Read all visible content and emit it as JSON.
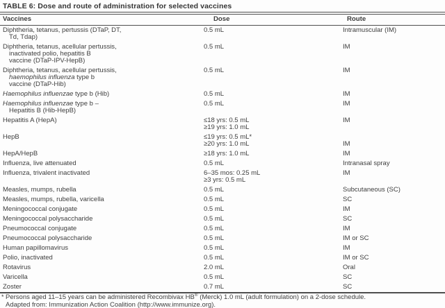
{
  "page": {
    "title": "TABLE 6: Dose and route of administration for selected vaccines"
  },
  "columns": {
    "vaccine": "Vaccines",
    "dose": "Dose",
    "route": "Route"
  },
  "rows": [
    {
      "vaccine": [
        [
          {
            "t": "Diphtheria, tetanus, pertussis (DTaP, DT,"
          }
        ],
        [
          {
            "t": "Td, Tdap)"
          }
        ]
      ],
      "dose": [
        "0.5 mL"
      ],
      "route": [
        "Intramuscular (IM)"
      ]
    },
    {
      "vaccine": [
        [
          {
            "t": "Diphtheria, tetanus, acellular pertussis,"
          }
        ],
        [
          {
            "t": "inactivated polio, hepatitis B"
          }
        ],
        [
          {
            "t": "vaccine (DTaP-IPV-HepB)"
          }
        ]
      ],
      "dose": [
        "0.5 mL"
      ],
      "route": [
        "IM"
      ]
    },
    {
      "vaccine": [
        [
          {
            "t": "Diphtheria, tetanus, acellular pertussis,"
          }
        ],
        [
          {
            "t": "haemophilus influenza",
            "i": true
          },
          {
            "t": " type b"
          }
        ],
        [
          {
            "t": "vaccine (DTaP-Hib)"
          }
        ]
      ],
      "dose": [
        "0.5 mL"
      ],
      "route": [
        "IM"
      ]
    },
    {
      "vaccine": [
        [
          {
            "t": "Haemophilus influenzae",
            "i": true
          },
          {
            "t": " type b (Hib)"
          }
        ]
      ],
      "dose": [
        "0.5 mL"
      ],
      "route": [
        "IM"
      ]
    },
    {
      "vaccine": [
        [
          {
            "t": "Haemophilus influenzae",
            "i": true
          },
          {
            "t": " type b –"
          }
        ],
        [
          {
            "t": "Hepatitis B (Hib-HepB)"
          }
        ]
      ],
      "dose": [
        "0.5 mL"
      ],
      "route": [
        "IM"
      ]
    },
    {
      "vaccine": [
        [
          {
            "t": "Hepatitis A (HepA)"
          }
        ]
      ],
      "dose": [
        "≤18 yrs: 0.5 mL",
        "≥19 yrs: 1.0 mL"
      ],
      "route": [
        "IM"
      ]
    },
    {
      "vaccine": [
        [
          {
            "t": "HepB"
          }
        ]
      ],
      "dose": [
        "≤19 yrs: 0.5 mL*",
        "≥20 yrs: 1.0 mL"
      ],
      "route": [
        "",
        "IM"
      ]
    },
    {
      "vaccine": [
        [
          {
            "t": "HepA/HepB"
          }
        ]
      ],
      "dose": [
        "≥18 yrs: 1.0 mL"
      ],
      "route": [
        "IM"
      ]
    },
    {
      "vaccine": [
        [
          {
            "t": "Influenza, live attenuated"
          }
        ]
      ],
      "dose": [
        "0.5 mL"
      ],
      "route": [
        "Intranasal spray"
      ]
    },
    {
      "vaccine": [
        [
          {
            "t": "Influenza, trivalent inactivated"
          }
        ]
      ],
      "dose": [
        "6–35 mos: 0.25 mL",
        "≥3 yrs: 0.5 mL"
      ],
      "route": [
        "IM"
      ]
    },
    {
      "vaccine": [
        [
          {
            "t": "Measles, mumps, rubella"
          }
        ]
      ],
      "dose": [
        "0.5 mL"
      ],
      "route": [
        "Subcutaneous (SC)"
      ]
    },
    {
      "vaccine": [
        [
          {
            "t": "Measles, mumps, rubella, varicella"
          }
        ]
      ],
      "dose": [
        "0.5 mL"
      ],
      "route": [
        "SC"
      ]
    },
    {
      "vaccine": [
        [
          {
            "t": "Meningococcal conjugate"
          }
        ]
      ],
      "dose": [
        "0.5 mL"
      ],
      "route": [
        "IM"
      ]
    },
    {
      "vaccine": [
        [
          {
            "t": "Meningococcal polysaccharide"
          }
        ]
      ],
      "dose": [
        "0.5 mL"
      ],
      "route": [
        "SC"
      ]
    },
    {
      "vaccine": [
        [
          {
            "t": "Pneumococcal conjugate"
          }
        ]
      ],
      "dose": [
        "0.5 mL"
      ],
      "route": [
        "IM"
      ]
    },
    {
      "vaccine": [
        [
          {
            "t": "Pneumococcal polysaccharide"
          }
        ]
      ],
      "dose": [
        "0.5 mL"
      ],
      "route": [
        "IM or SC"
      ]
    },
    {
      "vaccine": [
        [
          {
            "t": "Human papillomavirus"
          }
        ]
      ],
      "dose": [
        "0.5 mL"
      ],
      "route": [
        "IM"
      ]
    },
    {
      "vaccine": [
        [
          {
            "t": "Polio, inactivated"
          }
        ]
      ],
      "dose": [
        "0.5 mL"
      ],
      "route": [
        "IM or SC"
      ]
    },
    {
      "vaccine": [
        [
          {
            "t": "Rotavirus"
          }
        ]
      ],
      "dose": [
        "2.0 mL"
      ],
      "route": [
        "Oral"
      ]
    },
    {
      "vaccine": [
        [
          {
            "t": "Varicella"
          }
        ]
      ],
      "dose": [
        "0.5 mL"
      ],
      "route": [
        "SC"
      ]
    },
    {
      "vaccine": [
        [
          {
            "t": "Zoster"
          }
        ]
      ],
      "dose": [
        "0.7 mL"
      ],
      "route": [
        "SC"
      ]
    }
  ],
  "footnotes": [
    [
      {
        "t": "*",
        "star": true
      },
      {
        "t": "Persons aged 11–15 years can be administered Recombivax HB"
      },
      {
        "t": "®",
        "sup": true
      },
      {
        "t": " (Merck) 1.0 mL (adult formulation) on a 2-dose schedule."
      }
    ],
    [
      {
        "t": "Adapted from: Immunization Action Coalition (http://www.immunize.org)."
      }
    ]
  ]
}
